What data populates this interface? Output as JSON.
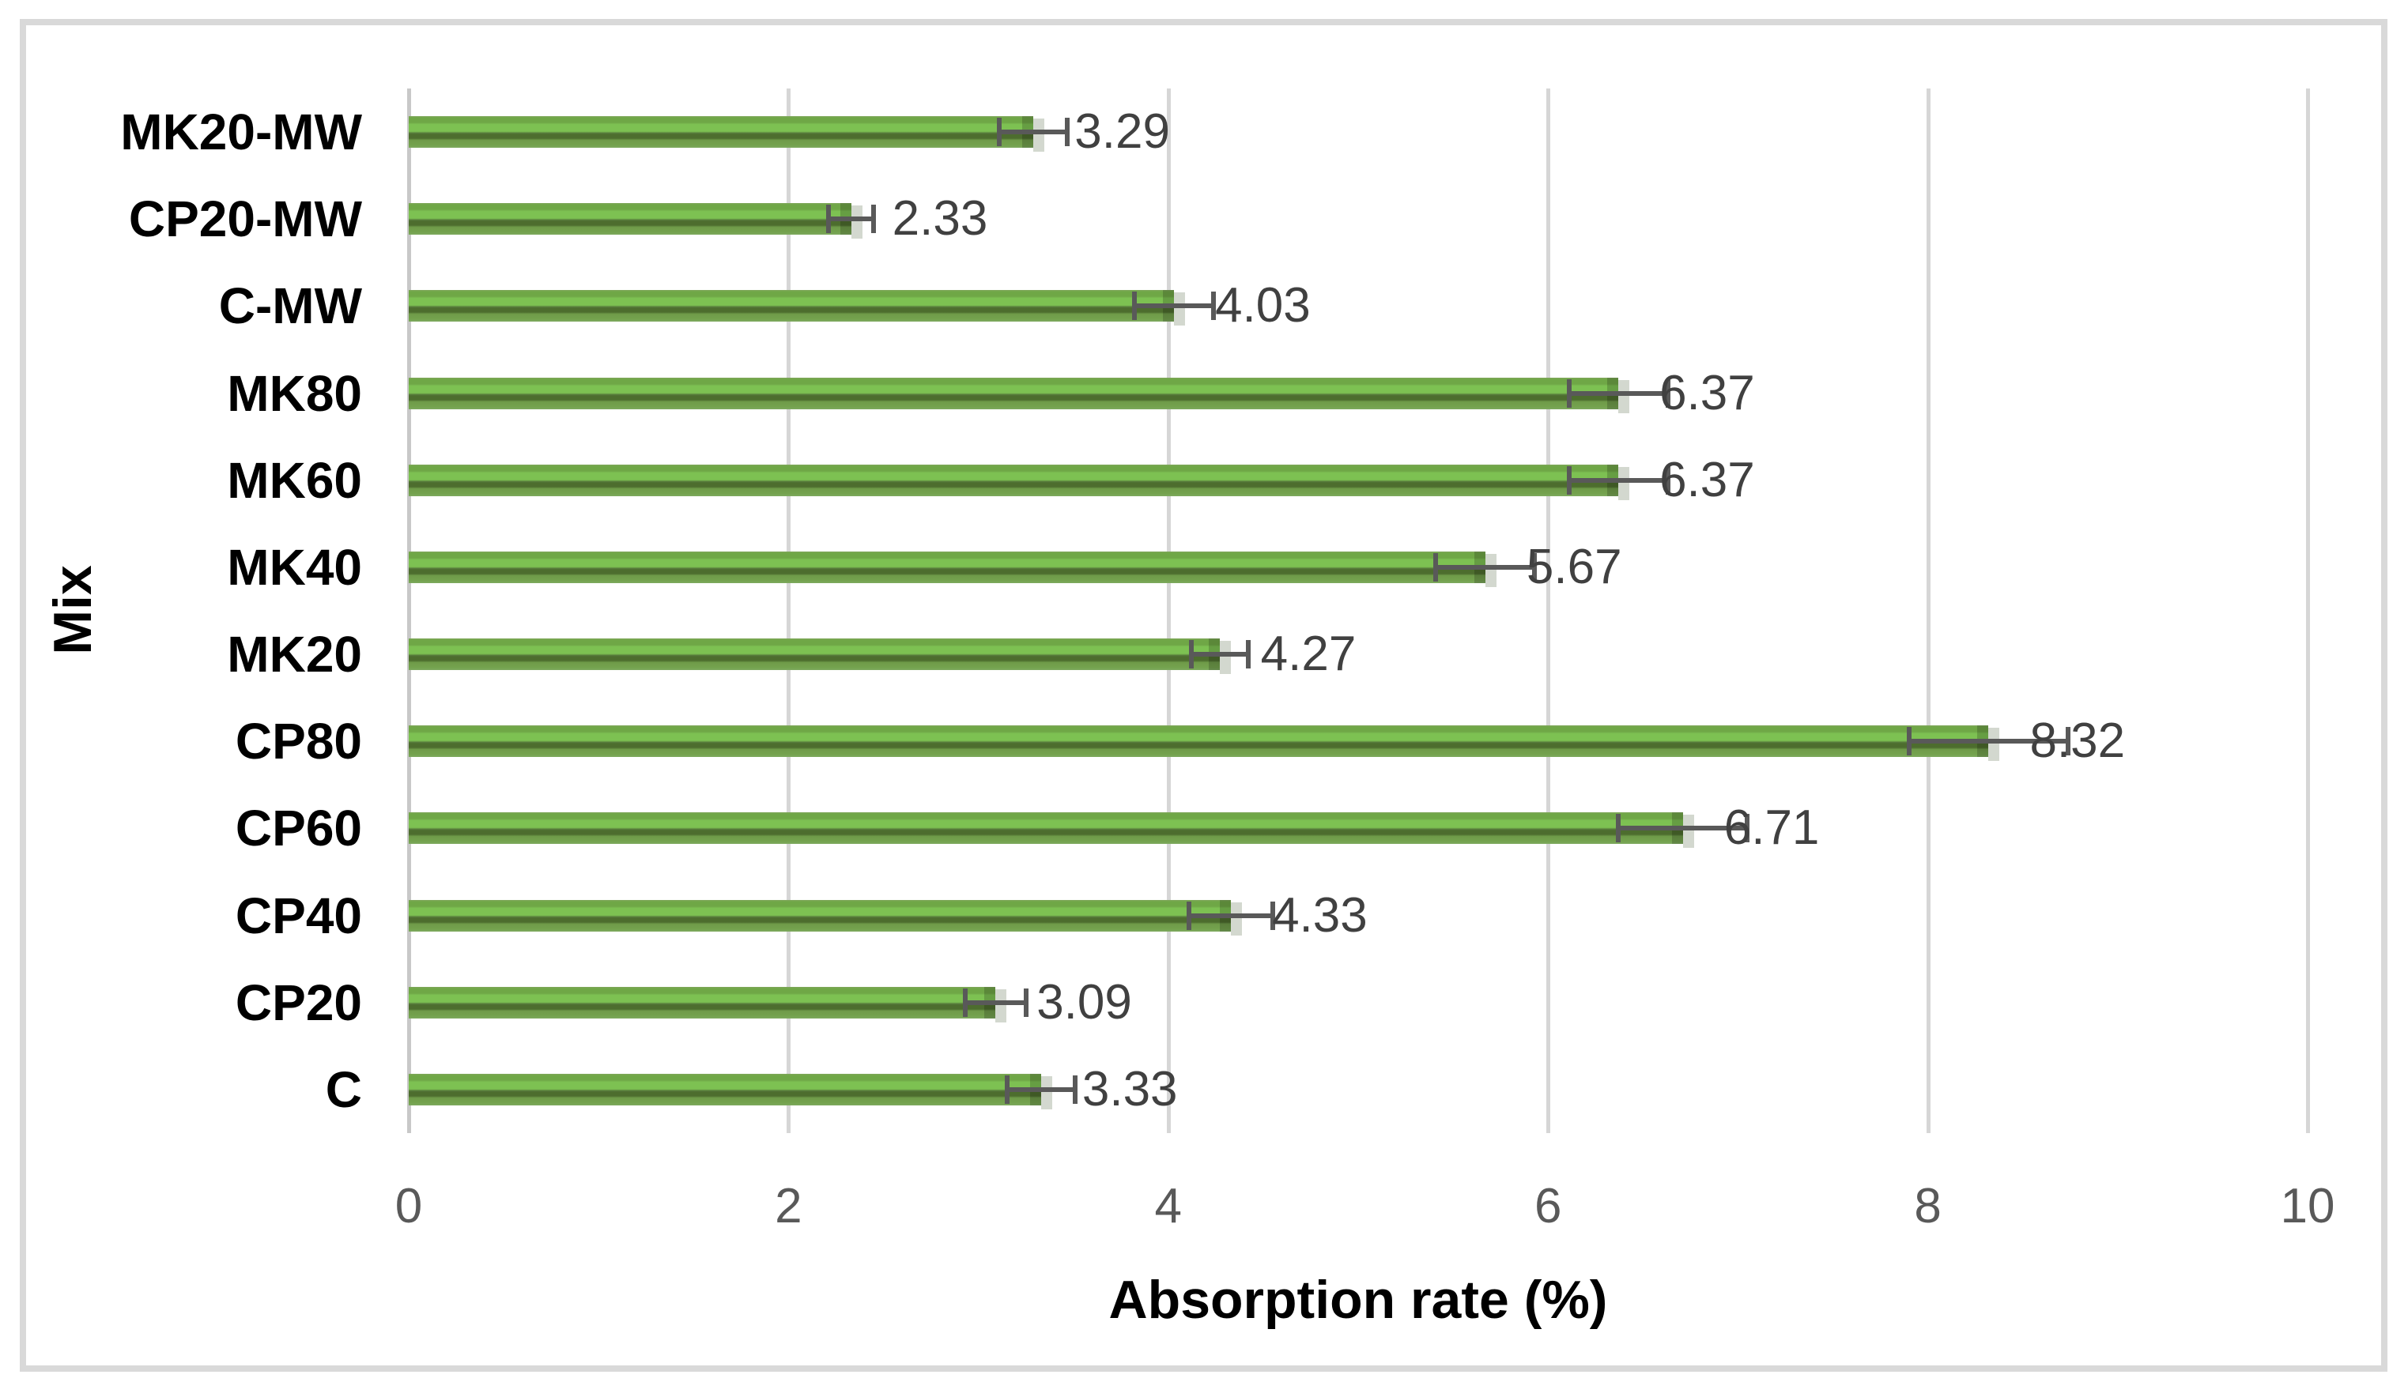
{
  "chart_data": {
    "type": "bar",
    "orientation": "horizontal",
    "title": "",
    "xlabel": "Absorption rate (%)",
    "ylabel": "Mix",
    "xlim": [
      0,
      10
    ],
    "xticks": [
      "0",
      "2",
      "4",
      "6",
      "8",
      "10"
    ],
    "grid": "vertical gridlines, light gray",
    "legend": "none",
    "categories": [
      "MK20-MW",
      "CP20-MW",
      "C-MW",
      "MK80",
      "MK60",
      "MK40",
      "MK20",
      "CP80",
      "CP60",
      "CP40",
      "CP20",
      "C"
    ],
    "values": [
      3.29,
      2.33,
      4.03,
      6.37,
      6.37,
      5.67,
      4.27,
      8.32,
      6.71,
      4.33,
      3.09,
      3.33
    ],
    "data_labels": [
      "3.29",
      "2.33",
      "4.03",
      "6.37",
      "6.37",
      "5.67",
      "4.27",
      "8.32",
      "6.71",
      "4.33",
      "3.09",
      "3.33"
    ],
    "error_bars_est": [
      0.18,
      0.12,
      0.21,
      0.26,
      0.26,
      0.26,
      0.15,
      0.42,
      0.34,
      0.22,
      0.16,
      0.18
    ],
    "colors": {
      "bar_light": "#7dc152",
      "bar_mid": "#6fa746",
      "bar_dark": "#4d6d2e",
      "error_bar": "#595959",
      "data_label": "#404040",
      "tick_label": "#595959",
      "gridline": "#d6d6d6",
      "frame": "#d9d9d9",
      "axis_title": "#000000",
      "background": "#ffffff"
    }
  }
}
